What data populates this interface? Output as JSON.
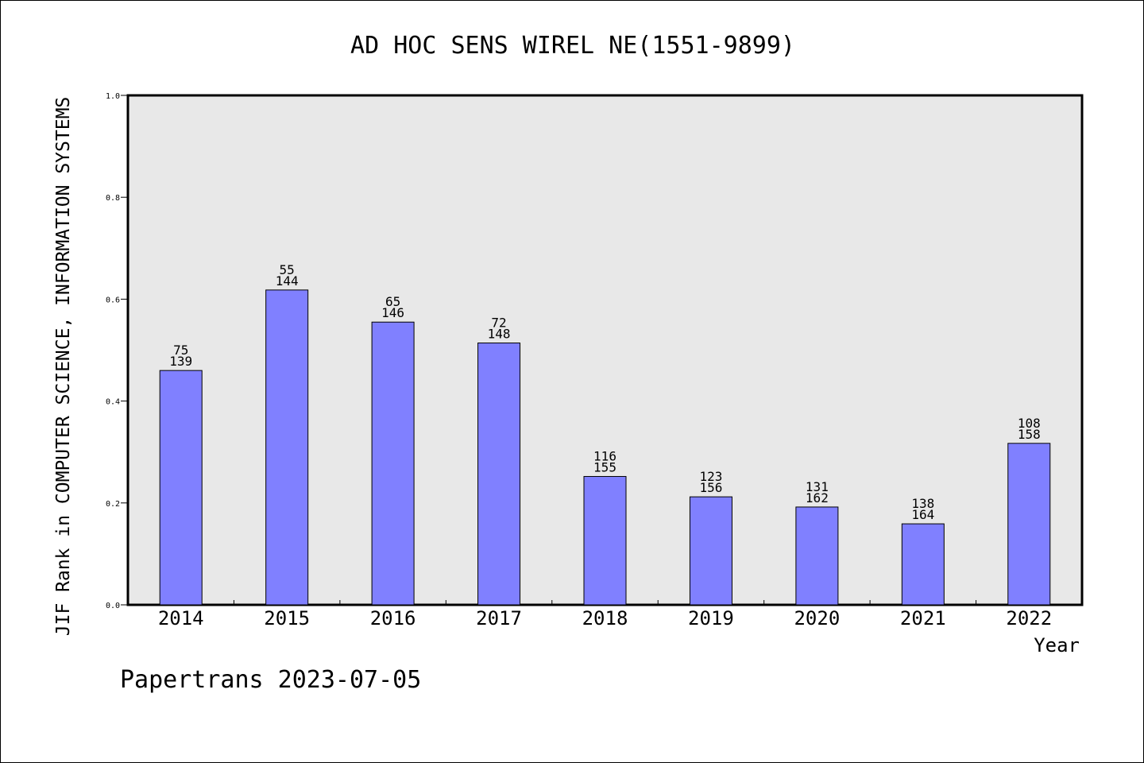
{
  "footer_text": "Papertrans 2023-07-05",
  "chart_data": {
    "type": "bar",
    "title": "AD HOC SENS WIREL NE(1551-9899)",
    "xlabel": "Year",
    "ylabel": "JIF Rank in COMPUTER SCIENCE, INFORMATION SYSTEMS",
    "ylim": [
      0.0,
      1.0
    ],
    "yticks": [
      "0.0",
      "0.2",
      "0.4",
      "0.6",
      "0.8",
      "1.0"
    ],
    "categories": [
      "2014",
      "2015",
      "2016",
      "2017",
      "2018",
      "2019",
      "2020",
      "2021",
      "2022"
    ],
    "values": [
      0.46,
      0.618,
      0.555,
      0.514,
      0.252,
      0.212,
      0.192,
      0.159,
      0.317
    ],
    "labels_rank": [
      "75",
      "55",
      "65",
      "72",
      "116",
      "123",
      "131",
      "138",
      "108"
    ],
    "labels_total": [
      "139",
      "144",
      "146",
      "148",
      "155",
      "156",
      "162",
      "164",
      "158"
    ],
    "grid": false,
    "colors": {
      "bar": "#8080ff",
      "plot_bg": "#e8e8e8",
      "edge": "#000000"
    }
  }
}
